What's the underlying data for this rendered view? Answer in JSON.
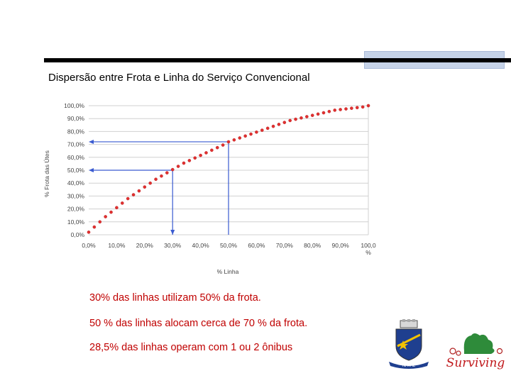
{
  "slide": {
    "title": "Dispersão entre Frota e Linha do Serviço Convencional",
    "notes": [
      "30% das linhas utilizam 50% da frota.",
      "50 % das linhas alocam cerca de 70 % da frota.",
      "28,5% das linhas operam com 1 ou 2 ônibus"
    ],
    "colors": {
      "accent_bar": "#c6d3e8",
      "notes": "#c00000",
      "curve": "#e03030",
      "guides": "#3a5bd0"
    },
    "logos": {
      "left": {
        "name": "natal-coat-of-arms",
        "text": "NATAL"
      },
      "right": {
        "name": "natal-tourism-logo",
        "text": "Surviving"
      }
    }
  },
  "chart_data": {
    "type": "scatter",
    "xlabel": "% Linha",
    "ylabel": "% Frota das Útes",
    "x_ticks": [
      "0,0%",
      "10,0%",
      "20,0%",
      "30,0%",
      "40,0%",
      "50,0%",
      "60,0%",
      "70,0%",
      "80,0%",
      "90,0%",
      "100,0\n%"
    ],
    "y_ticks": [
      "0,0%",
      "10,0%",
      "20,0%",
      "30,0%",
      "40,0%",
      "50,0%",
      "60,0%",
      "70,0%",
      "80,0%",
      "90,0%",
      "100,0%"
    ],
    "xlim": [
      0,
      100
    ],
    "ylim": [
      0,
      100
    ],
    "grid": "horizontal",
    "series": [
      {
        "color": "#e03030",
        "x": [
          0,
          2,
          4,
          6,
          8,
          10,
          12,
          14,
          16,
          18,
          20,
          22,
          24,
          26,
          28,
          30,
          32,
          34,
          36,
          38,
          40,
          42,
          44,
          46,
          48,
          50,
          52,
          54,
          56,
          58,
          60,
          62,
          64,
          66,
          68,
          70,
          72,
          74,
          76,
          78,
          80,
          82,
          84,
          86,
          88,
          90,
          92,
          94,
          96,
          98,
          100
        ],
        "y": [
          2,
          6,
          10,
          14,
          17.5,
          21,
          24.5,
          28,
          31,
          34,
          37,
          40,
          43,
          45.5,
          48,
          50.5,
          53,
          55.5,
          57.5,
          59.5,
          61.5,
          63.5,
          65.5,
          67.5,
          69.5,
          72,
          73.5,
          75,
          76.5,
          78,
          79.5,
          81,
          82.5,
          84,
          85.5,
          87,
          88.5,
          89.5,
          90.5,
          91.5,
          92.5,
          93.5,
          94.5,
          95.5,
          96.5,
          97,
          97.5,
          98,
          98.5,
          99,
          100
        ]
      }
    ],
    "annotations": [
      {
        "type": "guide",
        "x": 30,
        "y": 50
      },
      {
        "type": "guide",
        "x": 50,
        "y": 72
      }
    ]
  }
}
